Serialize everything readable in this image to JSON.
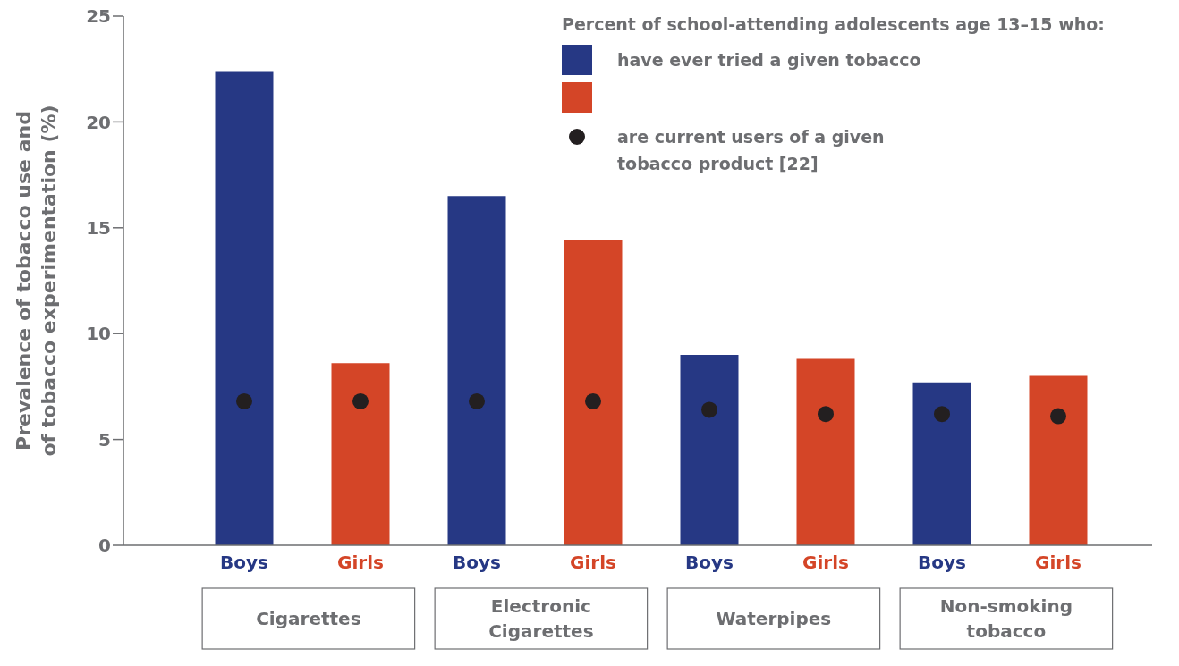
{
  "chart_data": {
    "type": "bar",
    "ylabel": "Prevalence of tobacco use and of tobacco experimentation (%)",
    "legend_title": "Percent of school-attending adolescents age 13–15 who:",
    "categories": [
      "Boys",
      "Girls",
      "Boys",
      "Girls",
      "Boys",
      "Girls",
      "Boys",
      "Girls"
    ],
    "annotations": [
      "Cigarettes",
      "Electronic Cigarettes",
      "Waterpipes",
      "Non-smoking tobacco"
    ],
    "series": [
      {
        "name": "have ever tried a given tobacco",
        "colors": [
          "#263884",
          "#d44527",
          "#263884",
          "#d44527",
          "#263884",
          "#d44527",
          "#263884",
          "#d44527"
        ],
        "values": [
          22.4,
          8.6,
          16.5,
          14.4,
          9.0,
          8.8,
          7.7,
          8.0
        ]
      },
      {
        "name": "are current users of a given tobacco product [22]",
        "type": "scatter",
        "color": "#231f20",
        "values": [
          6.8,
          6.8,
          6.8,
          6.8,
          6.4,
          6.2,
          6.2,
          6.1
        ]
      }
    ],
    "ylim": [
      0,
      25
    ],
    "yticks": [
      0,
      5,
      10,
      15,
      20,
      25
    ],
    "grid": false,
    "legend": "top right",
    "marker": "circle"
  }
}
